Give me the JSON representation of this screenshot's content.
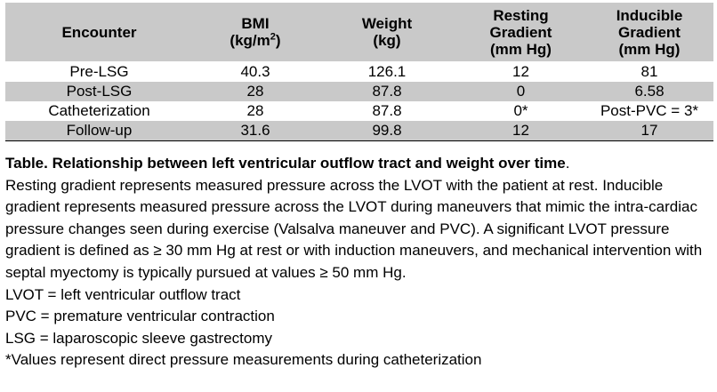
{
  "table": {
    "headers": [
      {
        "line1": "Encounter",
        "line2": ""
      },
      {
        "line1": "BMI",
        "line2_pre": "(kg/m",
        "line2_sup": "2",
        "line2_post": ")"
      },
      {
        "line1": "Weight",
        "line2": "(kg)"
      },
      {
        "line1": "Resting",
        "line2": "Gradient",
        "line3": "(mm Hg)"
      },
      {
        "line1": "Inducible",
        "line2": "Gradient",
        "line3": "(mm Hg)"
      }
    ],
    "rows": [
      {
        "encounter": "Pre-LSG",
        "bmi": "40.3",
        "weight": "126.1",
        "resting": "12",
        "inducible": "81"
      },
      {
        "encounter": "Post-LSG",
        "bmi": "28",
        "weight": "87.8",
        "resting": "0",
        "inducible": "6.58"
      },
      {
        "encounter": "Catheterization",
        "bmi": "28",
        "weight": "87.8",
        "resting": "0*",
        "inducible": "Post-PVC = 3*"
      },
      {
        "encounter": "Follow-up",
        "bmi": "31.6",
        "weight": "99.8",
        "resting": "12",
        "inducible": "17"
      }
    ]
  },
  "caption": {
    "title": "Table. Relationship between left ventricular outflow tract and weight over time",
    "title_end": ".",
    "body": "Resting gradient represents measured pressure across the LVOT with the patient at rest. Inducible gradient represents measured pressure across the LVOT during maneuvers that mimic the intra-cardiac pressure changes seen during exercise (Valsalva maneuver and PVC). A significant LVOT pressure gradient is defined as ≥ 30 mm Hg at rest or with induction maneuvers, and mechanical intervention with septal myectomy is typically pursued at values ≥ 50 mm Hg.",
    "abbreviations": [
      "LVOT = left ventricular outflow tract",
      "PVC = premature ventricular contraction",
      "LSG = laparoscopic sleeve gastrectomy",
      "*Values represent direct pressure measurements during catheterization"
    ]
  }
}
